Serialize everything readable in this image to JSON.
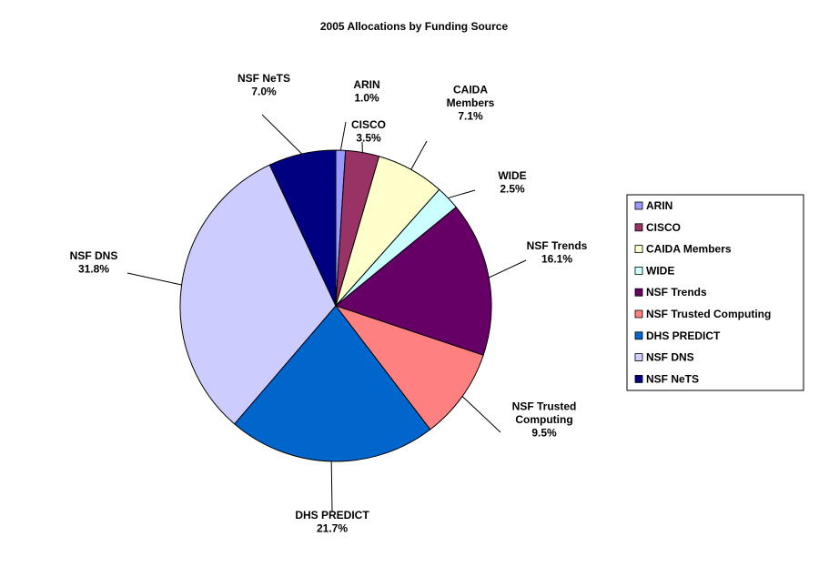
{
  "chart_data": {
    "type": "pie",
    "title": "2005 Allocations by Funding Source",
    "legend_position": "right",
    "slices": [
      {
        "name": "ARIN",
        "label_lines": [
          "ARIN"
        ],
        "value": 1.0,
        "display": "1.0%",
        "color": "#9999ff"
      },
      {
        "name": "CISCO",
        "label_lines": [
          "CISCO"
        ],
        "value": 3.5,
        "display": "3.5%",
        "color": "#993366"
      },
      {
        "name": "CAIDA Members",
        "label_lines": [
          "CAIDA",
          "Members"
        ],
        "value": 7.1,
        "display": "7.1%",
        "color": "#ffffcc"
      },
      {
        "name": "WIDE",
        "label_lines": [
          "WIDE"
        ],
        "value": 2.5,
        "display": "2.5%",
        "color": "#ccffff"
      },
      {
        "name": "NSF Trends",
        "label_lines": [
          "NSF Trends"
        ],
        "value": 16.1,
        "display": "16.1%",
        "color": "#660066"
      },
      {
        "name": "NSF Trusted Computing",
        "label_lines": [
          "NSF Trusted",
          "Computing"
        ],
        "value": 9.5,
        "display": "9.5%",
        "color": "#ff8080"
      },
      {
        "name": "DHS PREDICT",
        "label_lines": [
          "DHS PREDICT"
        ],
        "value": 21.7,
        "display": "21.7%",
        "color": "#0066cc"
      },
      {
        "name": "NSF DNS",
        "label_lines": [
          "NSF DNS"
        ],
        "value": 31.8,
        "display": "31.8%",
        "color": "#ccccff"
      },
      {
        "name": "NSF NeTS",
        "label_lines": [
          "NSF NeTS"
        ],
        "value": 7.0,
        "display": "7.0%",
        "color": "#000080"
      }
    ]
  }
}
